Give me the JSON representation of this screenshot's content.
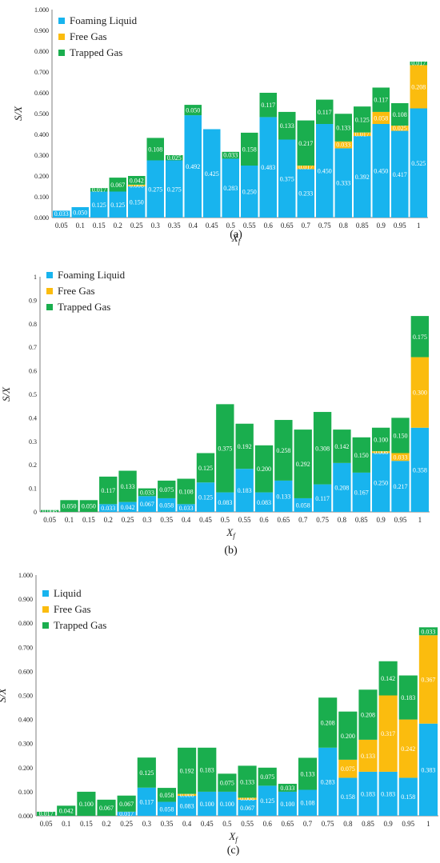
{
  "colors": {
    "liquid": "#18b4ee",
    "free_gas": "#fbbc0e",
    "trapped_gas": "#1aae4e",
    "axis": "#7f7f7f"
  },
  "chart_data": [
    {
      "type": "bar",
      "stacked": true,
      "panel_label": "(a)",
      "xlabel": "X_f",
      "ylabel": "S/X",
      "ylim": [
        0,
        1.0
      ],
      "yticks": [
        "0.000",
        "0.100",
        "0.200",
        "0.300",
        "0.400",
        "0.500",
        "0.600",
        "0.700",
        "0.800",
        "0.900",
        "1.000"
      ],
      "legend_position": "top-left",
      "categories": [
        "0.05",
        "0.1",
        "0.15",
        "0.2",
        "0.25",
        "0.3",
        "0.35",
        "0.4",
        "0.45",
        "0.5",
        "0.55",
        "0.6",
        "0.65",
        "0.7",
        "0.75",
        "0.8",
        "0.85",
        "0.9",
        "0.95",
        "1"
      ],
      "series": [
        {
          "name": "Foaming Liquid",
          "values": [
            0.033,
            0.05,
            0.125,
            0.125,
            0.15,
            0.275,
            0.275,
            0.492,
            0.425,
            0.283,
            0.25,
            0.483,
            0.375,
            0.233,
            0.45,
            0.333,
            0.392,
            0.45,
            0.417,
            0.525
          ]
        },
        {
          "name": "Free Gas",
          "values": [
            0,
            0,
            0,
            0,
            0.008,
            0,
            0,
            0,
            0,
            0,
            0,
            0,
            0,
            0.017,
            0,
            0.033,
            0.017,
            0.058,
            0.025,
            0.208
          ]
        },
        {
          "name": "Trapped Gas",
          "values": [
            0,
            0,
            0.017,
            0.067,
            0.042,
            0.108,
            0.025,
            0.05,
            0,
            0.033,
            0.158,
            0.117,
            0.133,
            0.217,
            0.117,
            0.133,
            0.125,
            0.117,
            0.108,
            0.017
          ]
        }
      ]
    },
    {
      "type": "bar",
      "stacked": true,
      "panel_label": "(b)",
      "xlabel": "X_f",
      "ylabel": "S/X",
      "ylim": [
        0,
        1
      ],
      "yticks": [
        "0",
        "0.1",
        "0.2",
        "0.3",
        "0.4",
        "0.5",
        "0.6",
        "0.7",
        "0.8",
        "0.9",
        "1"
      ],
      "legend_position": "top-left",
      "categories": [
        "0.05",
        "0.1",
        "0.15",
        "0.2",
        "0.25",
        "0.3",
        "0.35",
        "0.4",
        "0.45",
        "0.5",
        "0.55",
        "0.6",
        "0.65",
        "0.7",
        "0.75",
        "0.8",
        "0.85",
        "0.9",
        "0.95",
        "1"
      ],
      "series": [
        {
          "name": "Foaming Liquid",
          "values": [
            0,
            0,
            0,
            0.033,
            0.042,
            0.067,
            0.058,
            0.033,
            0.125,
            0.083,
            0.183,
            0.083,
            0.133,
            0.058,
            0.117,
            0.208,
            0.167,
            0.25,
            0.217,
            0.358
          ]
        },
        {
          "name": "Free Gas",
          "values": [
            0,
            0,
            0,
            0,
            0,
            0,
            0,
            0,
            0,
            0,
            0,
            0,
            0,
            0,
            0,
            0,
            0,
            0.008,
            0.033,
            0.3
          ]
        },
        {
          "name": "Trapped Gas",
          "values": [
            0.008,
            0.05,
            0.05,
            0.117,
            0.133,
            0.033,
            0.075,
            0.108,
            0.125,
            0.375,
            0.192,
            0.2,
            0.258,
            0.292,
            0.308,
            0.142,
            0.15,
            0.1,
            0.15,
            0.175
          ]
        }
      ]
    },
    {
      "type": "bar",
      "stacked": true,
      "panel_label": "(c)",
      "xlabel": "X_f",
      "ylabel": "S/X",
      "ylim": [
        0,
        1.0
      ],
      "yticks": [
        "0.000",
        "0.100",
        "0.200",
        "0.300",
        "0.400",
        "0.500",
        "0.600",
        "0.700",
        "0.800",
        "0.900",
        "1.000"
      ],
      "legend_position": "top-left",
      "categories": [
        "0.05",
        "0.1",
        "0.15",
        "0.2",
        "0.25",
        "0.3",
        "0.35",
        "0.4",
        "0.45",
        "0.5",
        "0.55",
        "0.6",
        "0.65",
        "0.7",
        "0.75",
        "0.8",
        "0.85",
        "0.9",
        "0.95",
        "1"
      ],
      "series": [
        {
          "name": "Liquid",
          "values": [
            0,
            0,
            0,
            0,
            0.017,
            0.117,
            0.058,
            0.083,
            0.1,
            0.1,
            0.067,
            0.125,
            0.1,
            0.108,
            0.283,
            0.158,
            0.183,
            0.183,
            0.158,
            0.383
          ]
        },
        {
          "name": "Free Gas",
          "values": [
            0,
            0,
            0,
            0,
            0,
            0,
            0,
            0.008,
            0,
            0,
            0.008,
            0,
            0,
            0,
            0,
            0.075,
            0.133,
            0.317,
            0.242,
            0.367
          ]
        },
        {
          "name": "Trapped Gas",
          "values": [
            0.017,
            0.042,
            0.1,
            0.067,
            0.067,
            0.125,
            0.058,
            0.192,
            0.183,
            0.075,
            0.133,
            0.075,
            0.033,
            0.133,
            0.208,
            0.2,
            0.208,
            0.142,
            0.183,
            0.033
          ]
        }
      ]
    }
  ]
}
